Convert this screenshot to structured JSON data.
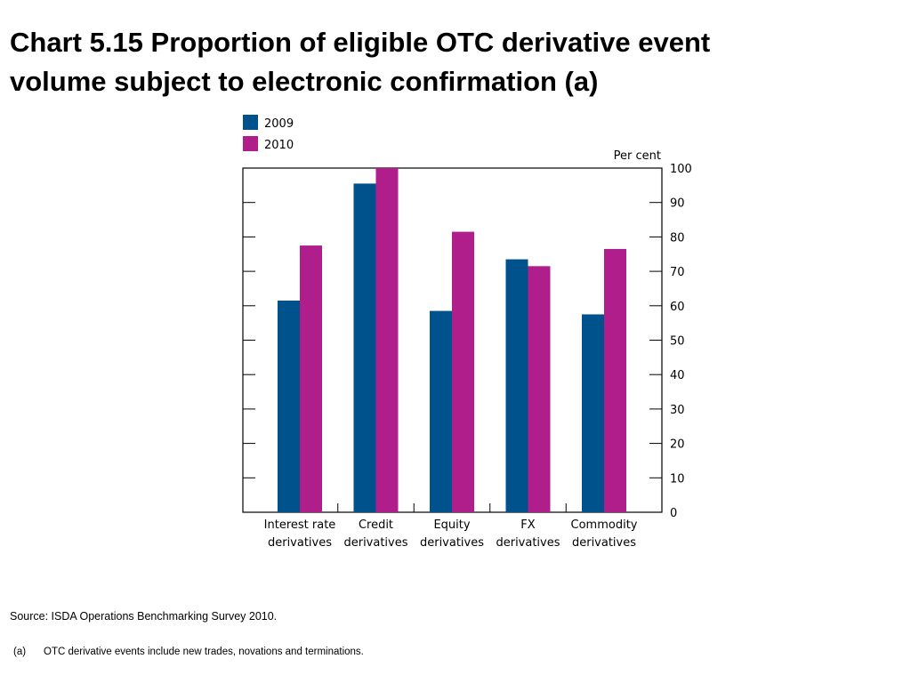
{
  "title_line1": "Chart 5.15  Proportion of eligible OTC derivative event",
  "title_line2": "volume subject to electronic confirmation (a)",
  "source": "Source:  ISDA Operations Benchmarking Survey 2010.",
  "note": {
    "marker": "(a)",
    "text": "OTC derivative events include new trades, novations and terminations."
  },
  "chart_data": {
    "type": "bar",
    "unit_label": "Per cent",
    "categories": [
      [
        "Interest rate",
        "derivatives"
      ],
      [
        "Credit",
        "derivatives"
      ],
      [
        "Equity",
        "derivatives"
      ],
      [
        "FX",
        "derivatives"
      ],
      [
        "Commodity",
        "derivatives"
      ]
    ],
    "series": [
      {
        "name": "2009",
        "color": "#00528c",
        "values": [
          61.5,
          95.5,
          58.5,
          73.5,
          57.5
        ]
      },
      {
        "name": "2010",
        "color": "#b01e8c",
        "values": [
          77.5,
          100,
          81.5,
          71.5,
          76.5
        ]
      }
    ],
    "ylim": [
      0,
      100
    ],
    "yticks": [
      0,
      10,
      20,
      30,
      40,
      50,
      60,
      70,
      80,
      90,
      100
    ],
    "grid": false,
    "legend_position": "top-left",
    "y_axis_side": "right"
  }
}
